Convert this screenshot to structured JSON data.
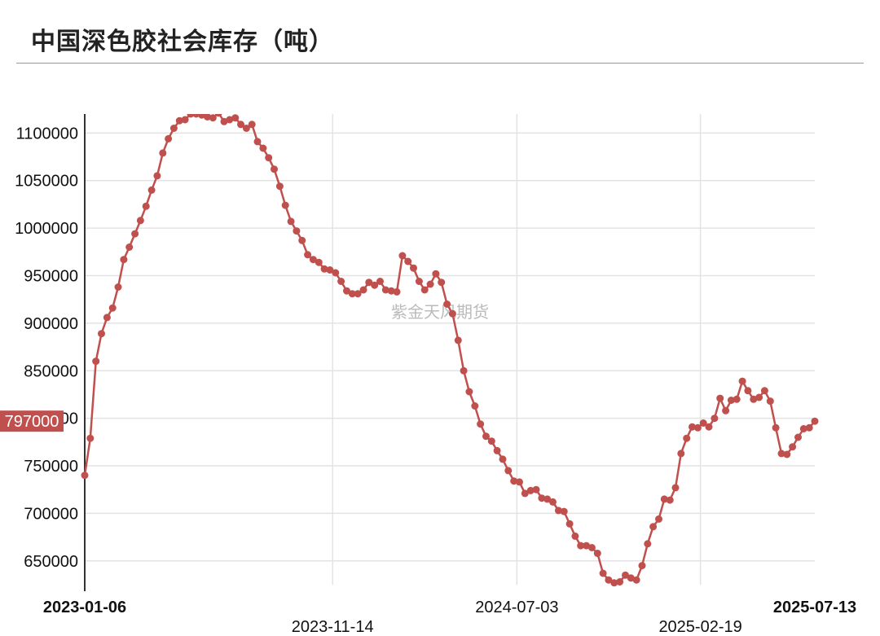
{
  "header": {
    "title": "中国深色胶社会库存（吨）"
  },
  "watermark": "紫金天风期货",
  "colors": {
    "series": "#c0504d",
    "grid": "#e3e3e3",
    "axis": "#333333"
  },
  "chart_data": {
    "type": "line",
    "title": "中国深色胶社会库存（吨）",
    "xlabel": "",
    "ylabel": "",
    "ylim": [
      625000,
      1120000
    ],
    "y_ticks": [
      650000,
      700000,
      750000,
      800000,
      850000,
      900000,
      950000,
      1000000,
      1050000,
      1100000
    ],
    "y_tick_labels": [
      "650000",
      "700000",
      "750000",
      "800000",
      "850000",
      "900000",
      "950000",
      "1000000",
      "1050000",
      "1100000"
    ],
    "x_range": [
      "2023-01-06",
      "2025-07-13"
    ],
    "x_ticks": [
      {
        "label": "2023-01-06",
        "date": "2023-01-06",
        "bold": true
      },
      {
        "label": "2023-11-14",
        "date": "2023-11-14",
        "bold": false
      },
      {
        "label": "2024-07-03",
        "date": "2024-07-03",
        "bold": false
      },
      {
        "label": "2025-02-19",
        "date": "2025-02-19",
        "bold": false
      },
      {
        "label": "2025-07-13",
        "date": "2025-07-13",
        "bold": true
      }
    ],
    "grid": true,
    "pointer_label": "797000",
    "series": [
      {
        "values": [
          740000,
          779000,
          860000,
          889000,
          906000,
          916000,
          938000,
          967000,
          980000,
          994000,
          1008000,
          1023000,
          1040000,
          1055000,
          1079000,
          1094000,
          1105000,
          1113000,
          1114000,
          1120000,
          1120000,
          1119000,
          1117000,
          1116000,
          1121000,
          1112000,
          1114000,
          1116000,
          1109000,
          1105000,
          1109000,
          1091000,
          1084000,
          1074000,
          1062000,
          1044000,
          1024000,
          1007000,
          997000,
          987000,
          972000,
          967000,
          964000,
          957000,
          956000,
          953000,
          944000,
          934000,
          931000,
          931000,
          935000,
          943000,
          940000,
          944000,
          935000,
          934000,
          933000,
          971000,
          965000,
          958000,
          944000,
          935000,
          941000,
          952000,
          943000,
          920000,
          910000,
          882000,
          850000,
          828000,
          813000,
          794000,
          781000,
          776000,
          766000,
          757000,
          745000,
          734000,
          733000,
          721000,
          724000,
          725000,
          716000,
          715000,
          712000,
          703000,
          702000,
          689000,
          676000,
          666000,
          666000,
          664000,
          658000,
          637000,
          630000,
          627000,
          628000,
          635000,
          632000,
          630000,
          645000,
          668000,
          686000,
          694000,
          715000,
          714000,
          727000,
          763000,
          779000,
          791000,
          790000,
          795000,
          791000,
          800000,
          821000,
          808000,
          819000,
          820000,
          839000,
          829000,
          820000,
          822000,
          829000,
          818000,
          790000,
          763000,
          762000,
          770000,
          780000,
          789000,
          790000,
          797000
        ]
      }
    ]
  }
}
